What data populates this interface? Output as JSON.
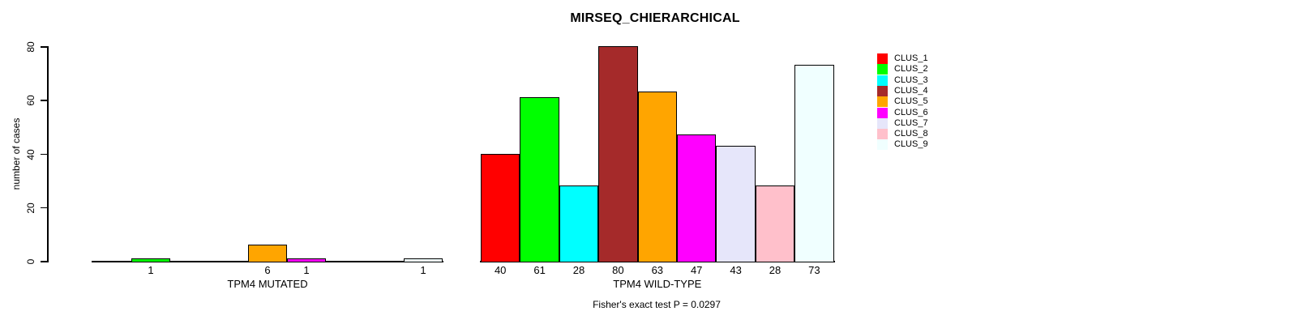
{
  "title": "MIRSEQ_CHIERARCHICAL",
  "y_axis": {
    "label": "number of cases"
  },
  "footer": "Fisher's exact test P = 0.0297",
  "chart_data": {
    "type": "bar",
    "title": "MIRSEQ_CHIERARCHICAL",
    "xlabel": "",
    "ylabel": "number of cases",
    "ylim": [
      0,
      80
    ],
    "yticks": [
      0,
      20,
      40,
      60,
      80
    ],
    "grid": false,
    "legend_position": "right",
    "categories": [
      "CLUS_1",
      "CLUS_2",
      "CLUS_3",
      "CLUS_4",
      "CLUS_5",
      "CLUS_6",
      "CLUS_7",
      "CLUS_8",
      "CLUS_9"
    ],
    "colors": [
      "#FF0000",
      "#00FF00",
      "#00FFFF",
      "#A52A2A",
      "#FFA500",
      "#FF00FF",
      "#E6E6FA",
      "#FFC0CB",
      "#F0FFFF"
    ],
    "series": [
      {
        "name": "TPM4 MUTATED",
        "values": [
          0,
          1,
          0,
          0,
          6,
          1,
          0,
          0,
          1
        ]
      },
      {
        "name": "TPM4 WILD-TYPE",
        "values": [
          40,
          61,
          28,
          80,
          63,
          47,
          43,
          28,
          73
        ]
      }
    ],
    "annotation": "Fisher's exact test P = 0.0297"
  }
}
